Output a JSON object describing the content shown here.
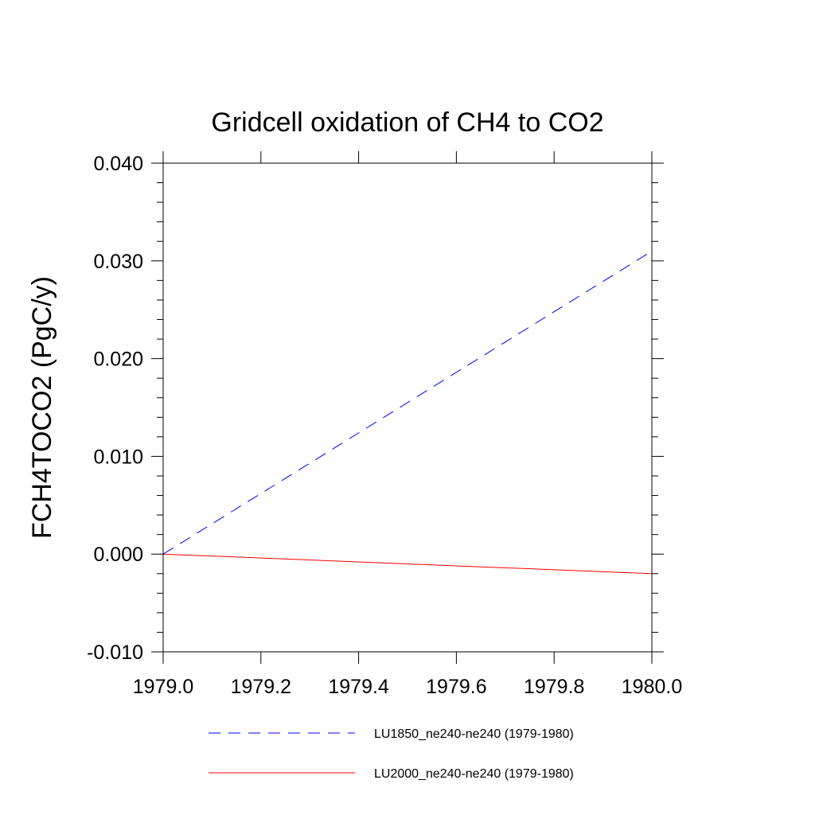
{
  "chart_data": {
    "type": "line",
    "title": "Gridcell oxidation of CH4 to CO2",
    "xlabel": "",
    "ylabel": "FCH4TOCO2  (PgC/y)",
    "xlim": [
      1979.0,
      1980.0
    ],
    "ylim": [
      -0.01,
      0.04
    ],
    "x_ticks": [
      1979.0,
      1979.2,
      1979.4,
      1979.6,
      1979.8,
      1980.0
    ],
    "x_tick_labels": [
      "1979.0",
      "1979.2",
      "1979.4",
      "1979.6",
      "1979.8",
      "1980.0"
    ],
    "y_ticks": [
      -0.01,
      0.0,
      0.01,
      0.02,
      0.03,
      0.04
    ],
    "y_tick_labels": [
      "-0.010",
      "0.000",
      "0.010",
      "0.020",
      "0.030",
      "0.040"
    ],
    "grid": false,
    "legend_position": "bottom",
    "series": [
      {
        "name": "LU1850_ne240-ne240 (1979-1980)",
        "color": "#0000ff",
        "dash": "dashed",
        "x": [
          1979.0,
          1980.0
        ],
        "y": [
          0.0,
          0.031
        ]
      },
      {
        "name": "LU2000_ne240-ne240 (1979-1980)",
        "color": "#ff0000",
        "dash": "solid",
        "x": [
          1979.0,
          1980.0
        ],
        "y": [
          0.0,
          -0.002
        ]
      }
    ]
  }
}
